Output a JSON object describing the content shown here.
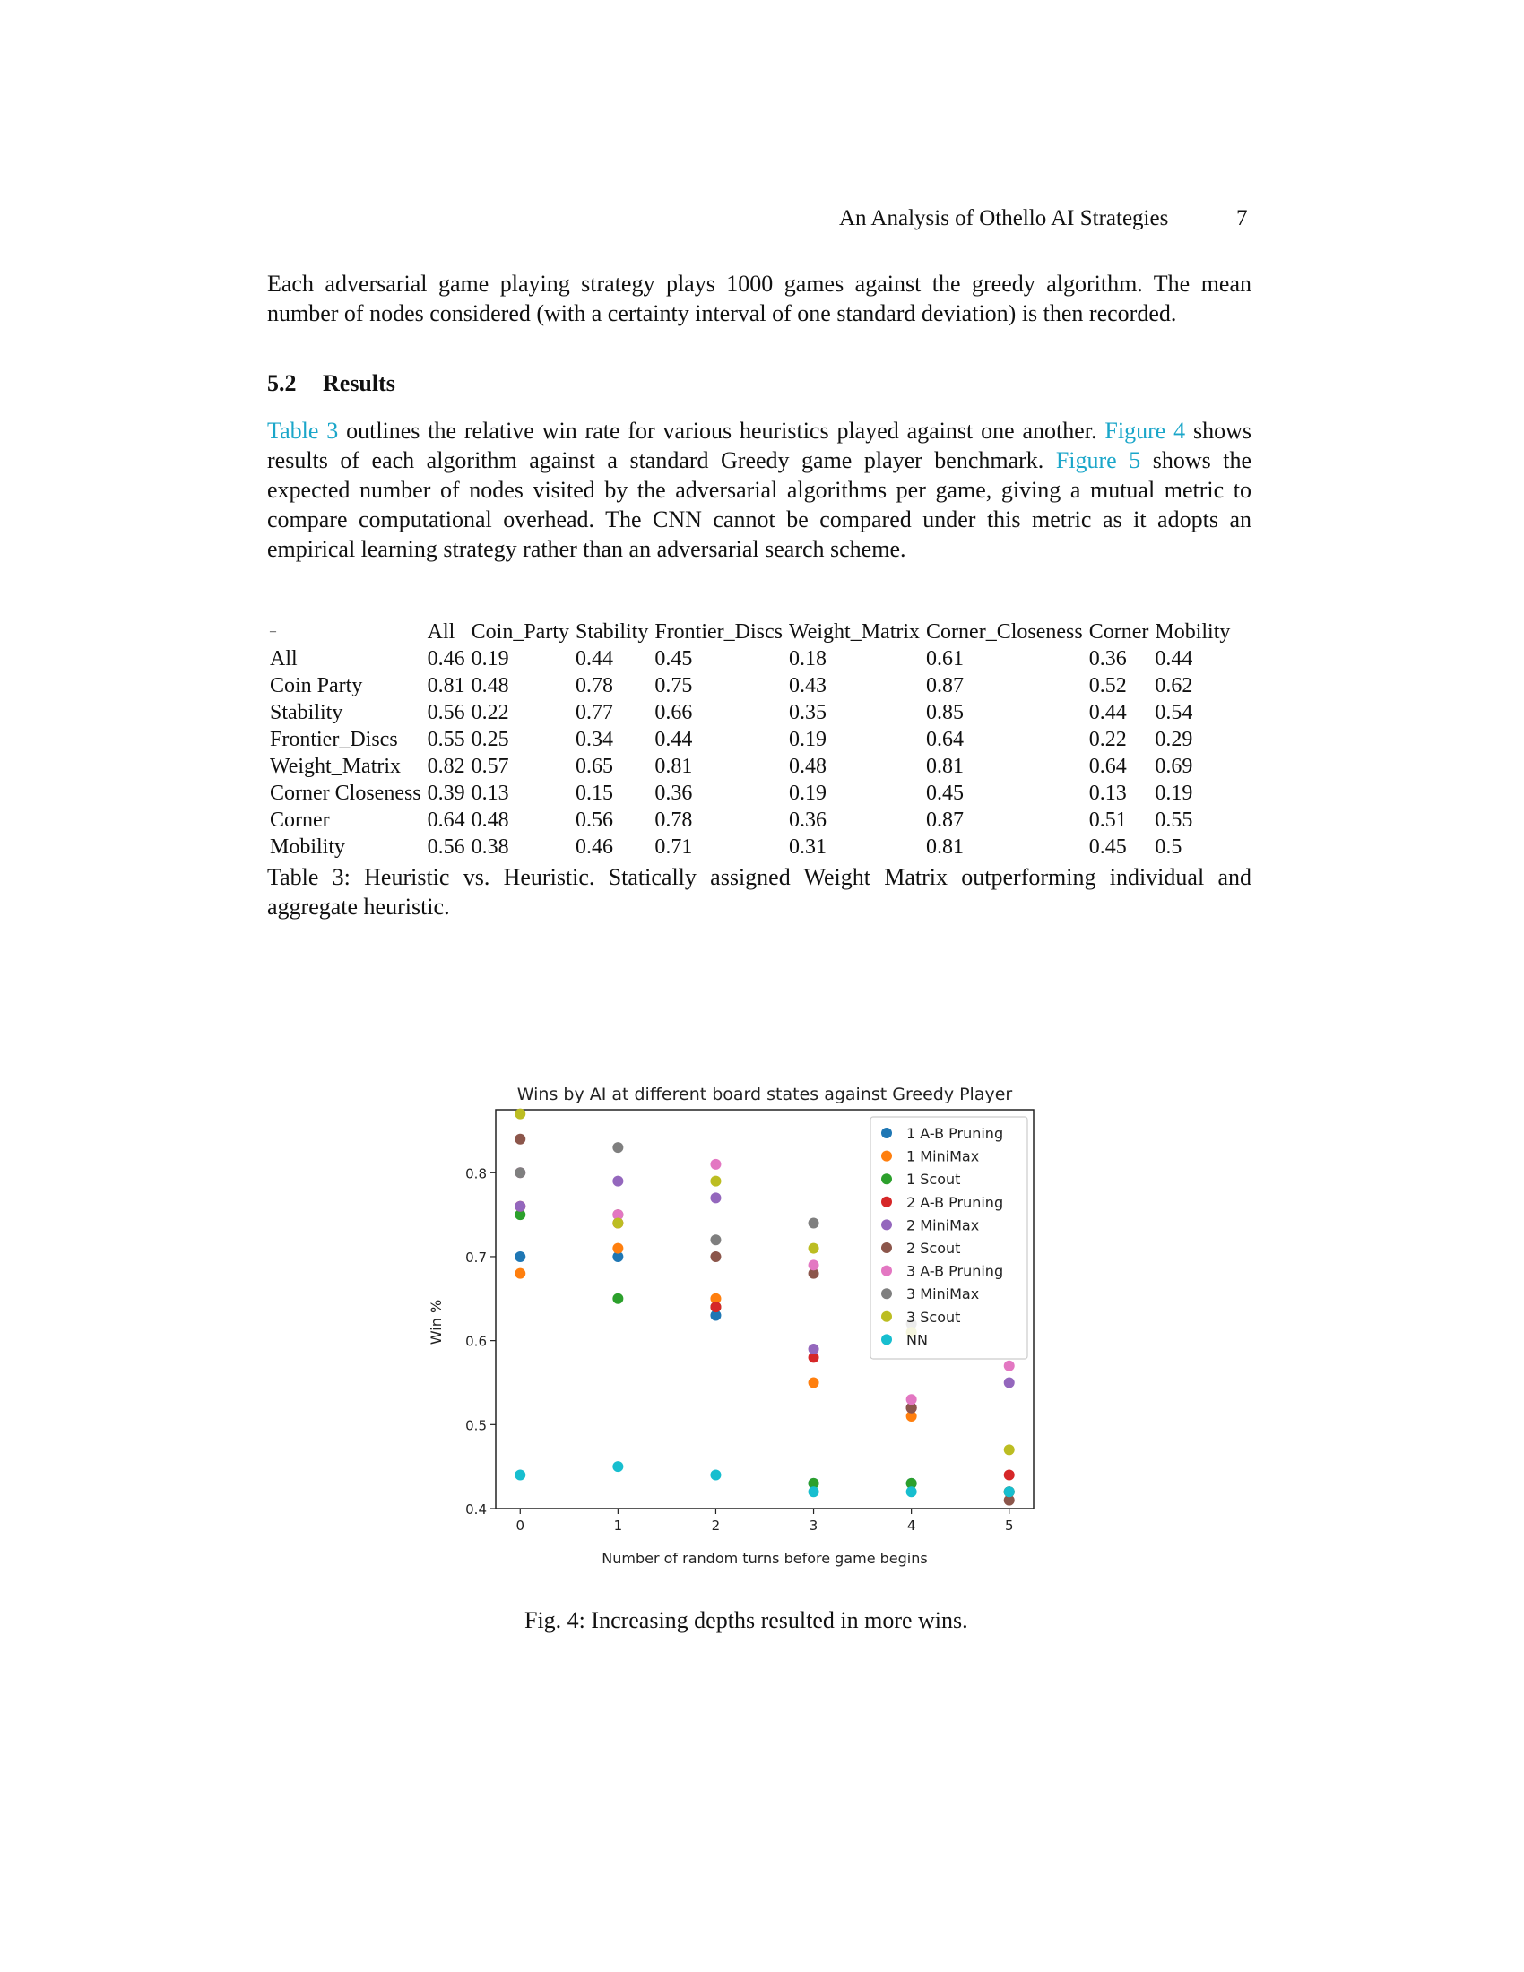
{
  "header": {
    "title": "An Analysis of Othello AI Strategies",
    "page_number": "7"
  },
  "paragraph1": "Each adversarial game playing strategy plays 1000 games against the greedy algorithm. The mean number of nodes considered (with a certainty interval of one standard deviation) is then recorded.",
  "section": {
    "number": "5.2",
    "title": "Results"
  },
  "paragraph2": {
    "ref_table3": "Table 3",
    "text_a": " outlines the relative win rate for various heuristics played against one another. ",
    "ref_fig4": "Figure 4",
    "text_b": " shows results of each algorithm against a standard Greedy game player benchmark. ",
    "ref_fig5": "Figure 5",
    "text_c": " shows the expected number of nodes visited by the adversarial algorithms per game, giving a mutual metric to compare computational overhead. The CNN cannot be compared under this metric as it adopts an empirical learning strategy rather than an adversarial search scheme."
  },
  "table3": {
    "corner_label": "–",
    "columns": [
      "All",
      "Coin_Party",
      "Stability",
      "Frontier_Discs",
      "Weight_Matrix",
      "Corner_Closeness",
      "Corner",
      "Mobility"
    ],
    "rows": [
      {
        "label": "All",
        "values": [
          "0.46",
          "0.19",
          "0.44",
          "0.45",
          "0.18",
          "0.61",
          "0.36",
          "0.44"
        ]
      },
      {
        "label": "Coin Party",
        "values": [
          "0.81",
          "0.48",
          "0.78",
          "0.75",
          "0.43",
          "0.87",
          "0.52",
          "0.62"
        ]
      },
      {
        "label": "Stability",
        "values": [
          "0.56",
          "0.22",
          "0.77",
          "0.66",
          "0.35",
          "0.85",
          "0.44",
          "0.54"
        ]
      },
      {
        "label": "Frontier_Discs",
        "values": [
          "0.55",
          "0.25",
          "0.34",
          "0.44",
          "0.19",
          "0.64",
          "0.22",
          "0.29"
        ]
      },
      {
        "label": "Weight_Matrix",
        "values": [
          "0.82",
          "0.57",
          "0.65",
          "0.81",
          "0.48",
          "0.81",
          "0.64",
          "0.69"
        ]
      },
      {
        "label": "Corner Closeness",
        "values": [
          "0.39",
          "0.13",
          "0.15",
          "0.36",
          "0.19",
          "0.45",
          "0.13",
          "0.19"
        ]
      },
      {
        "label": "Corner",
        "values": [
          "0.64",
          "0.48",
          "0.56",
          "0.78",
          "0.36",
          "0.87",
          "0.51",
          "0.55"
        ]
      },
      {
        "label": "Mobility",
        "values": [
          "0.56",
          "0.38",
          "0.46",
          "0.71",
          "0.31",
          "0.81",
          "0.45",
          "0.5"
        ]
      }
    ],
    "caption": "Table 3: Heuristic vs. Heuristic. Statically assigned Weight Matrix outperforming individual and aggregate heuristic."
  },
  "figure4_caption": "Fig. 4: Increasing depths resulted in more wins.",
  "chart_data": {
    "type": "scatter",
    "title": "Wins by AI at different board states against Greedy Player",
    "xlabel": "Number of random turns before game begins",
    "ylabel": "Win %",
    "x": [
      0,
      1,
      2,
      3,
      4,
      5
    ],
    "xticks": [
      "0",
      "1",
      "2",
      "3",
      "4",
      "5"
    ],
    "yticks": [
      "0.4",
      "0.5",
      "0.6",
      "0.7",
      "0.8"
    ],
    "xlim": [
      -0.25,
      5.25
    ],
    "ylim": [
      0.4,
      0.875
    ],
    "legend_position": "top-right",
    "grid": false,
    "series": [
      {
        "name": "1 A-B Pruning",
        "color": "#1f77b4",
        "values": [
          0.7,
          0.7,
          0.63,
          0.43,
          0.43,
          0.42
        ]
      },
      {
        "name": "1 MiniMax",
        "color": "#ff7f0e",
        "values": [
          0.68,
          0.71,
          0.65,
          0.55,
          0.51,
          0.42
        ]
      },
      {
        "name": "1 Scout",
        "color": "#2ca02c",
        "values": [
          0.75,
          0.65,
          0.64,
          0.43,
          0.43,
          0.42
        ]
      },
      {
        "name": "2 A-B Pruning",
        "color": "#d62728",
        "values": [
          0.76,
          0.74,
          0.64,
          0.58,
          0.52,
          0.44
        ]
      },
      {
        "name": "2 MiniMax",
        "color": "#9467bd",
        "values": [
          0.76,
          0.79,
          0.77,
          0.59,
          0.52,
          0.55
        ]
      },
      {
        "name": "2 Scout",
        "color": "#8c564b",
        "values": [
          0.84,
          0.75,
          0.7,
          0.68,
          0.52,
          0.41
        ]
      },
      {
        "name": "3 A-B Pruning",
        "color": "#e377c2",
        "values": [
          0.8,
          0.75,
          0.81,
          0.69,
          0.53,
          0.57
        ]
      },
      {
        "name": "3 MiniMax",
        "color": "#7f7f7f",
        "values": [
          0.8,
          0.83,
          0.72,
          0.74,
          0.62,
          0.42
        ]
      },
      {
        "name": "3 Scout",
        "color": "#bcbd22",
        "values": [
          0.87,
          0.74,
          0.79,
          0.71,
          0.61,
          0.47
        ]
      },
      {
        "name": "NN",
        "color": "#17becf",
        "values": [
          0.44,
          0.45,
          0.44,
          0.42,
          0.42,
          0.42
        ]
      }
    ]
  }
}
